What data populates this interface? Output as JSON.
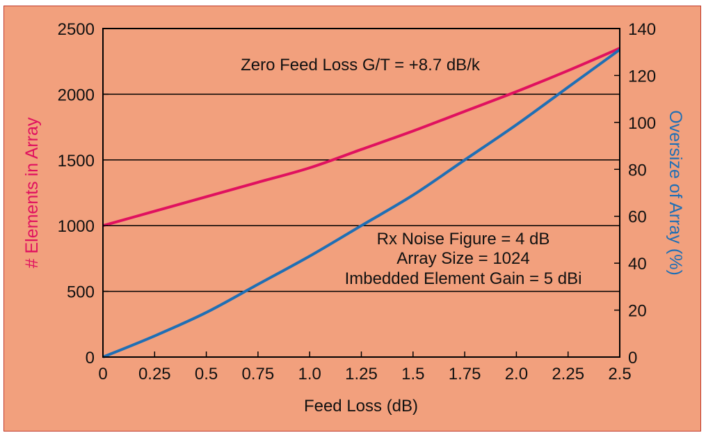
{
  "chart_data": {
    "type": "line",
    "xlabel": "Feed Loss (dB)",
    "ylabel_left": "# Elements in Array",
    "ylabel_right": "Oversize of Array (%)",
    "x_ticks": [
      "0",
      "0.25",
      "0.5",
      "0.75",
      "1.0",
      "1.25",
      "1.5",
      "1.75",
      "2.0",
      "2.25",
      "2.5"
    ],
    "y_left_ticks": [
      "0",
      "500",
      "1000",
      "1500",
      "2000",
      "2500"
    ],
    "y_right_ticks": [
      "0",
      "20",
      "40",
      "60",
      "80",
      "100",
      "120",
      "140"
    ],
    "xlim": [
      0,
      2.5
    ],
    "ylim_left": [
      0,
      2500
    ],
    "ylim_right": [
      0,
      140
    ],
    "grid": "horizontal",
    "annotations": [
      "Zero Feed Loss G/T = +8.7 dB/k",
      "Rx Noise Figure = 4 dB",
      "Array Size = 1024",
      "Imbedded Element Gain = 5 dBi"
    ],
    "series": [
      {
        "axis": "left",
        "color": "#e0115f",
        "x": [
          0,
          0.25,
          0.5,
          0.75,
          1.0,
          1.25,
          1.5,
          1.75,
          2.0,
          2.25,
          2.5
        ],
        "y": [
          1000,
          1110,
          1220,
          1330,
          1440,
          1580,
          1720,
          1870,
          2020,
          2180,
          2350
        ]
      },
      {
        "axis": "right",
        "color": "#1f6fb5",
        "x": [
          0,
          0.25,
          0.5,
          0.75,
          1.0,
          1.25,
          1.5,
          1.75,
          2.0,
          2.25,
          2.5
        ],
        "y": [
          0,
          9,
          19,
          31,
          43,
          56,
          69,
          84,
          99,
          115,
          131
        ]
      }
    ]
  }
}
